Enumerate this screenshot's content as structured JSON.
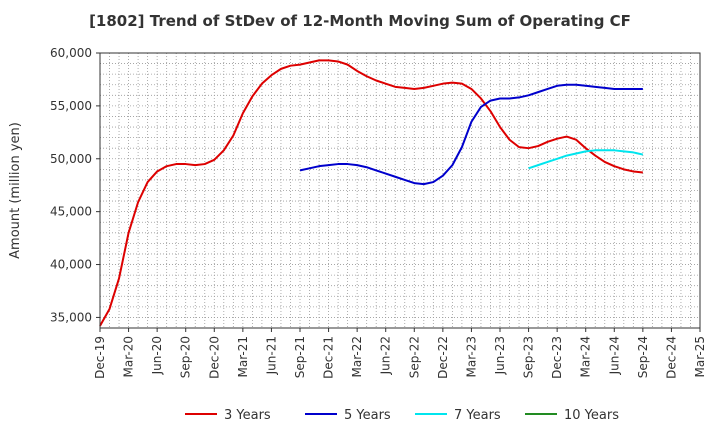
{
  "chart_data": {
    "type": "line",
    "title": "[1802]  Trend of StDev of 12-Month Moving Sum of Operating CF",
    "xlabel": "",
    "ylabel": "Amount (million yen)",
    "ylim": [
      34000,
      60000
    ],
    "yticks": [
      35000,
      40000,
      45000,
      50000,
      55000,
      60000
    ],
    "ytick_labels": [
      "35,000",
      "40,000",
      "45,000",
      "50,000",
      "55,000",
      "60,000"
    ],
    "x_range": [
      "2019-12",
      "2025-03"
    ],
    "xticks": [
      "Dec-19",
      "Mar-20",
      "Jun-20",
      "Sep-20",
      "Dec-20",
      "Mar-21",
      "Jun-21",
      "Sep-21",
      "Dec-21",
      "Mar-22",
      "Jun-22",
      "Sep-22",
      "Dec-22",
      "Mar-23",
      "Jun-23",
      "Sep-23",
      "Dec-23",
      "Mar-24",
      "Jun-24",
      "Sep-24",
      "Dec-24",
      "Mar-25"
    ],
    "grid": true,
    "legend_position": "bottom",
    "series": [
      {
        "name": "3 Years",
        "color": "#dd0000",
        "points": [
          [
            "2019-12",
            34200
          ],
          [
            "2020-01",
            35800
          ],
          [
            "2020-02",
            38700
          ],
          [
            "2020-03",
            43000
          ],
          [
            "2020-04",
            45900
          ],
          [
            "2020-05",
            47800
          ],
          [
            "2020-06",
            48800
          ],
          [
            "2020-07",
            49300
          ],
          [
            "2020-08",
            49500
          ],
          [
            "2020-09",
            49500
          ],
          [
            "2020-10",
            49400
          ],
          [
            "2020-11",
            49500
          ],
          [
            "2020-12",
            49900
          ],
          [
            "2020-13",
            50800
          ],
          [
            "2021-02",
            52200
          ],
          [
            "2021-03",
            54300
          ],
          [
            "2021-04",
            55900
          ],
          [
            "2021-05",
            57100
          ],
          [
            "2021-06",
            57900
          ],
          [
            "2021-07",
            58500
          ],
          [
            "2021-08",
            58800
          ],
          [
            "2021-09",
            58900
          ],
          [
            "2021-10",
            59100
          ],
          [
            "2021-11",
            59300
          ],
          [
            "2021-12",
            59300
          ],
          [
            "2022-01",
            59200
          ],
          [
            "2022-02",
            58900
          ],
          [
            "2022-03",
            58300
          ],
          [
            "2022-04",
            57800
          ],
          [
            "2022-05",
            57400
          ],
          [
            "2022-06",
            57100
          ],
          [
            "2022-07",
            56800
          ],
          [
            "2022-08",
            56700
          ],
          [
            "2022-09",
            56600
          ],
          [
            "2022-10",
            56700
          ],
          [
            "2022-11",
            56900
          ],
          [
            "2022-12",
            57100
          ],
          [
            "2023-01",
            57200
          ],
          [
            "2023-02",
            57100
          ],
          [
            "2023-03",
            56600
          ],
          [
            "2023-04",
            55700
          ],
          [
            "2023-05",
            54500
          ],
          [
            "2023-06",
            53000
          ],
          [
            "2023-07",
            51800
          ],
          [
            "2023-08",
            51100
          ],
          [
            "2023-09",
            51000
          ],
          [
            "2023-10",
            51200
          ],
          [
            "2023-11",
            51600
          ],
          [
            "2023-12",
            51900
          ],
          [
            "2024-01",
            52100
          ],
          [
            "2024-02",
            51800
          ],
          [
            "2024-03",
            51000
          ],
          [
            "2024-04",
            50300
          ],
          [
            "2024-05",
            49700
          ],
          [
            "2024-06",
            49300
          ],
          [
            "2024-07",
            49000
          ],
          [
            "2024-08",
            48800
          ],
          [
            "2024-09",
            48700
          ]
        ]
      },
      {
        "name": "5 Years",
        "color": "#0000cc",
        "points": [
          [
            "2021-09",
            48900
          ],
          [
            "2021-10",
            49100
          ],
          [
            "2021-11",
            49300
          ],
          [
            "2021-12",
            49400
          ],
          [
            "2022-01",
            49500
          ],
          [
            "2022-02",
            49500
          ],
          [
            "2022-03",
            49400
          ],
          [
            "2022-04",
            49200
          ],
          [
            "2022-05",
            48900
          ],
          [
            "2022-06",
            48600
          ],
          [
            "2022-07",
            48300
          ],
          [
            "2022-08",
            48000
          ],
          [
            "2022-09",
            47700
          ],
          [
            "2022-10",
            47600
          ],
          [
            "2022-11",
            47800
          ],
          [
            "2022-12",
            48400
          ],
          [
            "2023-01",
            49400
          ],
          [
            "2023-02",
            51100
          ],
          [
            "2023-03",
            53500
          ],
          [
            "2023-04",
            54900
          ],
          [
            "2023-05",
            55500
          ],
          [
            "2023-06",
            55700
          ],
          [
            "2023-07",
            55700
          ],
          [
            "2023-08",
            55800
          ],
          [
            "2023-09",
            56000
          ],
          [
            "2023-10",
            56300
          ],
          [
            "2023-11",
            56600
          ],
          [
            "2023-12",
            56900
          ],
          [
            "2024-01",
            57000
          ],
          [
            "2024-02",
            57000
          ],
          [
            "2024-03",
            56900
          ],
          [
            "2024-04",
            56800
          ],
          [
            "2024-05",
            56700
          ],
          [
            "2024-06",
            56600
          ],
          [
            "2024-07",
            56600
          ],
          [
            "2024-08",
            56600
          ],
          [
            "2024-09",
            56600
          ]
        ]
      },
      {
        "name": "7 Years",
        "color": "#00e5ee",
        "points": [
          [
            "2023-09",
            49100
          ],
          [
            "2023-10",
            49400
          ],
          [
            "2023-11",
            49700
          ],
          [
            "2023-12",
            50000
          ],
          [
            "2024-01",
            50300
          ],
          [
            "2024-02",
            50500
          ],
          [
            "2024-03",
            50700
          ],
          [
            "2024-04",
            50800
          ],
          [
            "2024-05",
            50800
          ],
          [
            "2024-06",
            50800
          ],
          [
            "2024-07",
            50700
          ],
          [
            "2024-08",
            50600
          ],
          [
            "2024-09",
            50400
          ]
        ]
      },
      {
        "name": "10 Years",
        "color": "#228b22",
        "points": []
      }
    ]
  }
}
